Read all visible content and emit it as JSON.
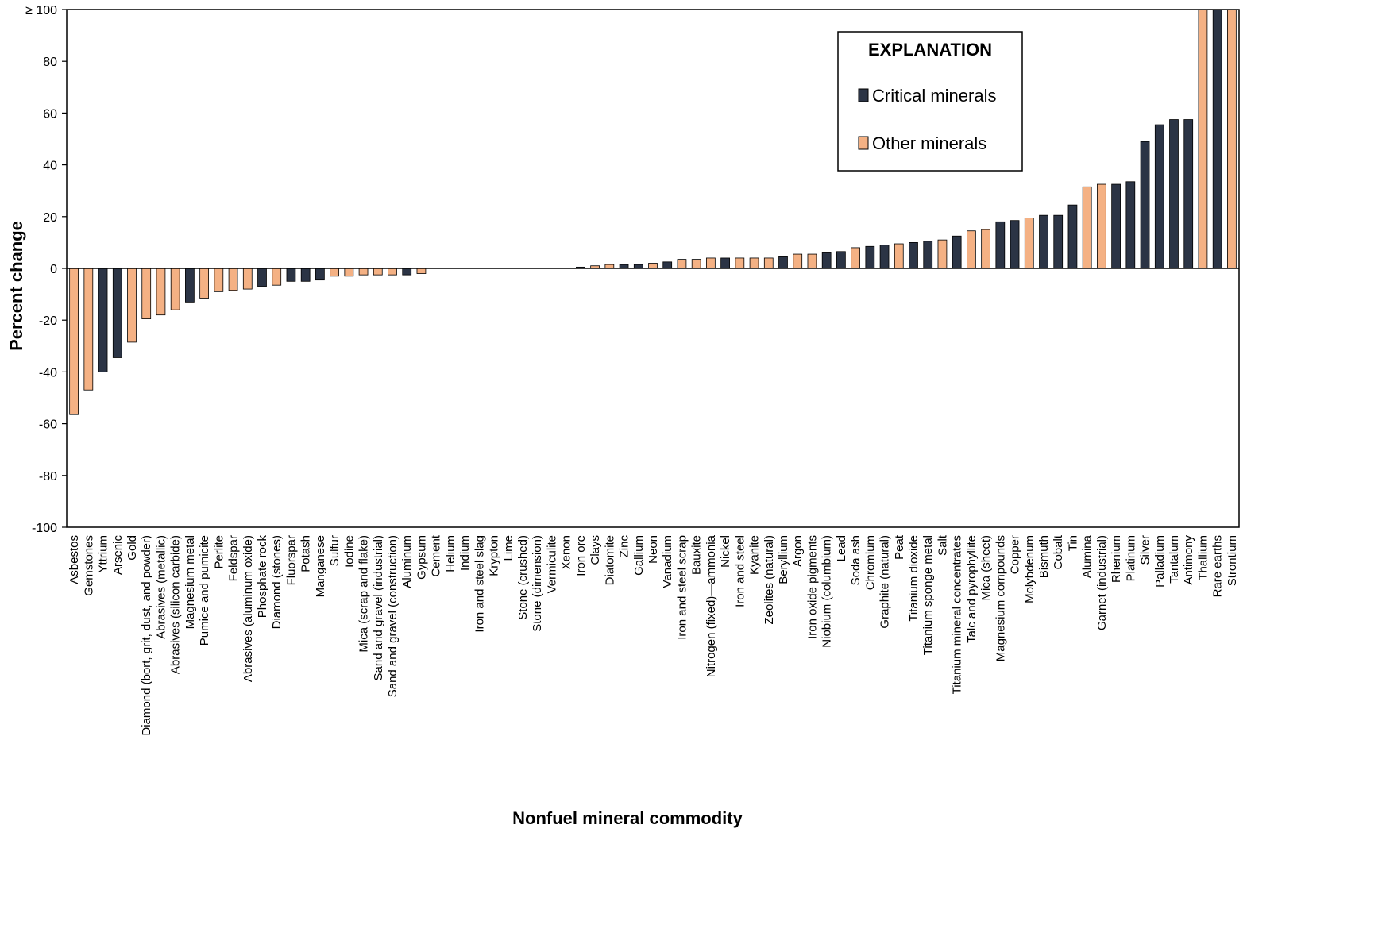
{
  "chart_data": {
    "type": "bar",
    "xlabel": "Nonfuel mineral commodity",
    "ylabel": "Percent change",
    "ylim": [
      -100,
      100
    ],
    "y_ticks": [
      "-100",
      "-80",
      "-60",
      "-40",
      "-20",
      "0",
      "20",
      "40",
      "60",
      "80",
      "≥ 100"
    ],
    "grid": false,
    "legend_position": "top-right",
    "legend": {
      "title": "EXPLANATION",
      "items": [
        {
          "label": "Critical minerals",
          "class": "critical",
          "color": "#2b3445"
        },
        {
          "label": "Other minerals",
          "class": "other",
          "color": "#f4b184"
        }
      ]
    },
    "categories": [
      {
        "name": "Asbestos",
        "value": -56.5,
        "class": "other"
      },
      {
        "name": "Gemstones",
        "value": -47,
        "class": "other"
      },
      {
        "name": "Yttrium",
        "value": -40,
        "class": "critical"
      },
      {
        "name": "Arsenic",
        "value": -34.5,
        "class": "critical"
      },
      {
        "name": "Gold",
        "value": -28.5,
        "class": "other"
      },
      {
        "name": "Diamond (bort, grit, dust, and powder)",
        "value": -19.5,
        "class": "other"
      },
      {
        "name": "Abrasives (metallic)",
        "value": -18,
        "class": "other"
      },
      {
        "name": "Abrasives (silicon carbide)",
        "value": -16,
        "class": "other"
      },
      {
        "name": "Magnesium metal",
        "value": -13,
        "class": "critical"
      },
      {
        "name": "Pumice and pumicite",
        "value": -11.5,
        "class": "other"
      },
      {
        "name": "Perlite",
        "value": -9,
        "class": "other"
      },
      {
        "name": "Feldspar",
        "value": -8.5,
        "class": "other"
      },
      {
        "name": "Abrasives (aluminum oxide)",
        "value": -8,
        "class": "other"
      },
      {
        "name": "Phosphate rock",
        "value": -7,
        "class": "critical"
      },
      {
        "name": "Diamond (stones)",
        "value": -6.5,
        "class": "other"
      },
      {
        "name": "Fluorspar",
        "value": -5,
        "class": "critical"
      },
      {
        "name": "Potash",
        "value": -5,
        "class": "critical"
      },
      {
        "name": "Manganese",
        "value": -4.5,
        "class": "critical"
      },
      {
        "name": "Sulfur",
        "value": -3,
        "class": "other"
      },
      {
        "name": "Iodine",
        "value": -3,
        "class": "other"
      },
      {
        "name": "Mica (scrap and flake)",
        "value": -2.5,
        "class": "other"
      },
      {
        "name": "Sand and gravel (industrial)",
        "value": -2.5,
        "class": "other"
      },
      {
        "name": "Sand and gravel (construction)",
        "value": -2.5,
        "class": "other"
      },
      {
        "name": "Aluminum",
        "value": -2.5,
        "class": "critical"
      },
      {
        "name": "Gypsum",
        "value": -2,
        "class": "other"
      },
      {
        "name": "Cement",
        "value": 0,
        "class": "other"
      },
      {
        "name": "Helium",
        "value": 0,
        "class": "other"
      },
      {
        "name": "Indium",
        "value": 0,
        "class": "critical"
      },
      {
        "name": "Iron and steel slag",
        "value": 0,
        "class": "other"
      },
      {
        "name": "Krypton",
        "value": 0,
        "class": "other"
      },
      {
        "name": "Lime",
        "value": 0,
        "class": "other"
      },
      {
        "name": "Stone (crushed)",
        "value": 0,
        "class": "other"
      },
      {
        "name": "Stone (dimension)",
        "value": 0,
        "class": "other"
      },
      {
        "name": "Vermiculite",
        "value": 0,
        "class": "other"
      },
      {
        "name": "Xenon",
        "value": 0,
        "class": "other"
      },
      {
        "name": "Iron ore",
        "value": 0.5,
        "class": "critical"
      },
      {
        "name": "Clays",
        "value": 1,
        "class": "other"
      },
      {
        "name": "Diatomite",
        "value": 1.5,
        "class": "other"
      },
      {
        "name": "Zinc",
        "value": 1.5,
        "class": "critical"
      },
      {
        "name": "Gallium",
        "value": 1.5,
        "class": "critical"
      },
      {
        "name": "Neon",
        "value": 2,
        "class": "other"
      },
      {
        "name": "Vanadium",
        "value": 2.5,
        "class": "critical"
      },
      {
        "name": "Iron and steel scrap",
        "value": 3.5,
        "class": "other"
      },
      {
        "name": "Bauxite",
        "value": 3.5,
        "class": "other"
      },
      {
        "name": "Nitrogen (fixed)—ammonia",
        "value": 4,
        "class": "other"
      },
      {
        "name": "Nickel",
        "value": 4,
        "class": "critical"
      },
      {
        "name": "Iron and steel",
        "value": 4,
        "class": "other"
      },
      {
        "name": "Kyanite",
        "value": 4,
        "class": "other"
      },
      {
        "name": "Zeolites (natural)",
        "value": 4,
        "class": "other"
      },
      {
        "name": "Beryllium",
        "value": 4.5,
        "class": "critical"
      },
      {
        "name": "Argon",
        "value": 5.5,
        "class": "other"
      },
      {
        "name": "Iron oxide pigments",
        "value": 5.5,
        "class": "other"
      },
      {
        "name": "Niobium (columbium)",
        "value": 6,
        "class": "critical"
      },
      {
        "name": "Lead",
        "value": 6.5,
        "class": "critical"
      },
      {
        "name": "Soda ash",
        "value": 8,
        "class": "other"
      },
      {
        "name": "Chromium",
        "value": 8.5,
        "class": "critical"
      },
      {
        "name": "Graphite (natural)",
        "value": 9,
        "class": "critical"
      },
      {
        "name": "Peat",
        "value": 9.5,
        "class": "other"
      },
      {
        "name": "Titanium dioxide",
        "value": 10,
        "class": "critical"
      },
      {
        "name": "Titanium sponge metal",
        "value": 10.5,
        "class": "critical"
      },
      {
        "name": "Salt",
        "value": 11,
        "class": "other"
      },
      {
        "name": "Titanium mineral concentrates",
        "value": 12.5,
        "class": "critical"
      },
      {
        "name": "Talc and pyrophyllite",
        "value": 14.5,
        "class": "other"
      },
      {
        "name": "Mica (sheet)",
        "value": 15,
        "class": "other"
      },
      {
        "name": "Magnesium compounds",
        "value": 18,
        "class": "critical"
      },
      {
        "name": "Copper",
        "value": 18.5,
        "class": "critical"
      },
      {
        "name": "Molybdenum",
        "value": 19.5,
        "class": "other"
      },
      {
        "name": "Bismuth",
        "value": 20.5,
        "class": "critical"
      },
      {
        "name": "Cobalt",
        "value": 20.5,
        "class": "critical"
      },
      {
        "name": "Tin",
        "value": 24.5,
        "class": "critical"
      },
      {
        "name": "Alumina",
        "value": 31.5,
        "class": "other"
      },
      {
        "name": "Garnet (industrial)",
        "value": 32.5,
        "class": "other"
      },
      {
        "name": "Rhenium",
        "value": 32.5,
        "class": "critical"
      },
      {
        "name": "Platinum",
        "value": 33.5,
        "class": "critical"
      },
      {
        "name": "Silver",
        "value": 49,
        "class": "critical"
      },
      {
        "name": "Palladium",
        "value": 55.5,
        "class": "critical"
      },
      {
        "name": "Tantalum",
        "value": 57.5,
        "class": "critical"
      },
      {
        "name": "Antimony",
        "value": 57.5,
        "class": "critical"
      },
      {
        "name": "Thallium",
        "value": 100,
        "class": "other"
      },
      {
        "name": "Rare earths",
        "value": 100,
        "class": "critical"
      },
      {
        "name": "Strontium",
        "value": 100,
        "class": "other"
      }
    ]
  }
}
